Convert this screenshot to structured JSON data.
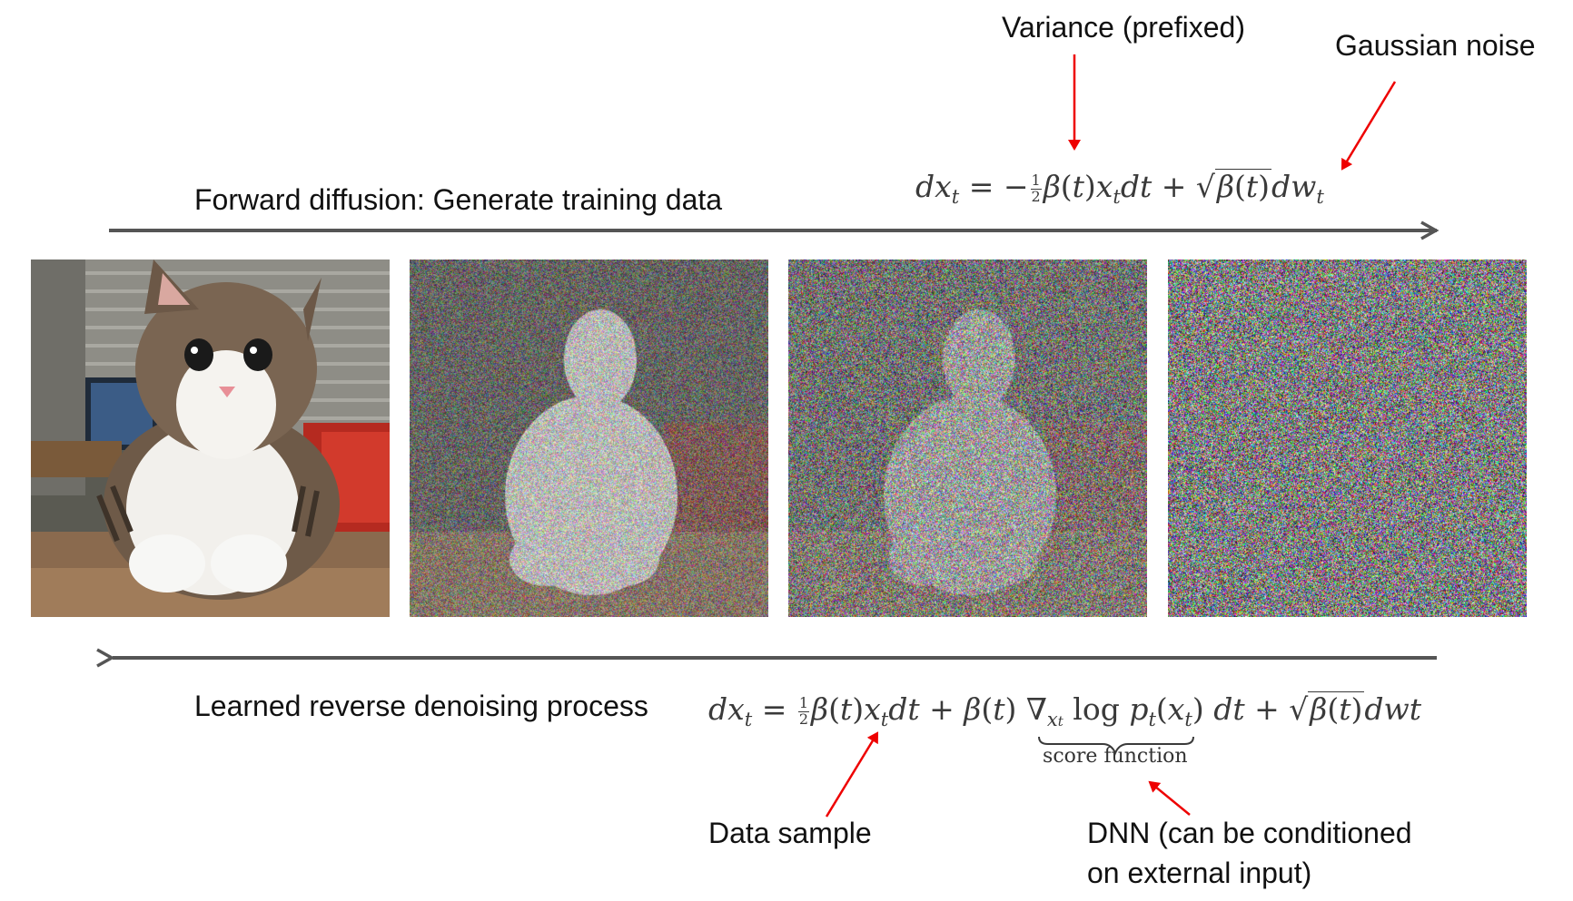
{
  "labels": {
    "variance": "Variance (prefixed)",
    "gaussian_noise": "Gaussian noise",
    "forward": "Forward diffusion: Generate training data",
    "reverse": "Learned reverse denoising process",
    "data_sample": "Data sample",
    "dnn_line1": "DNN (can be conditioned",
    "dnn_line2": "on external input)",
    "score_function": "score function"
  },
  "images": [
    {
      "name": "clean-cat-image",
      "description": "cat sitting at desk",
      "noise_level": 0
    },
    {
      "name": "slightly-noisy-cat-image",
      "noise_level": 0.5
    },
    {
      "name": "very-noisy-cat-image",
      "noise_level": 0.75
    },
    {
      "name": "pure-noise-image",
      "noise_level": 1
    }
  ],
  "colors": {
    "arrow_gray": "#555555",
    "annotation_red": "#ee0000"
  }
}
